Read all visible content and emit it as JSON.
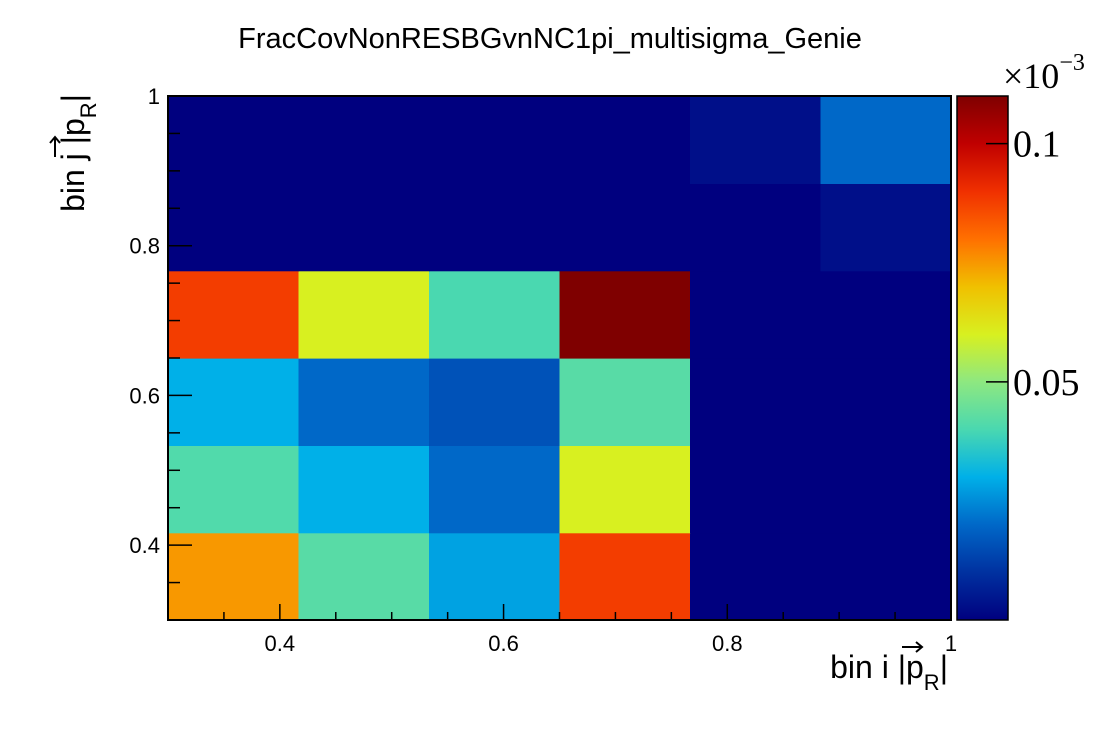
{
  "chart_data": {
    "type": "heatmap",
    "title": "FracCovNonRESBGvnNC1pi_multisigma_Genie",
    "xlabel": {
      "main": "bin i |",
      "vector": "p",
      "sub": "R",
      "close": "|"
    },
    "ylabel": {
      "main": "bin j |",
      "vector": "p",
      "sub": "R",
      "close": "|"
    },
    "x_edges": [
      0.3,
      0.4167,
      0.5333,
      0.65,
      0.7667,
      0.8833,
      1.0
    ],
    "y_edges": [
      0.3,
      0.4167,
      0.5333,
      0.65,
      0.7667,
      0.8833,
      1.0
    ],
    "xlim": [
      0.3,
      1.0
    ],
    "ylim": [
      0.3,
      1.0
    ],
    "x_ticks": [
      {
        "value": 0.4,
        "label": "0.4"
      },
      {
        "value": 0.6,
        "label": "0.6"
      },
      {
        "value": 0.8,
        "label": "0.8"
      },
      {
        "value": 1.0,
        "label": "1"
      }
    ],
    "y_ticks": [
      {
        "value": 0.4,
        "label": "0.4"
      },
      {
        "value": 0.6,
        "label": "0.6"
      },
      {
        "value": 0.8,
        "label": "0.8"
      },
      {
        "value": 1.0,
        "label": "1"
      }
    ],
    "values": [
      [
        0.075,
        0.042,
        0.028,
        0.088,
        0.0,
        0.0
      ],
      [
        0.041,
        0.03,
        0.02,
        0.06,
        0.0,
        0.0
      ],
      [
        0.03,
        0.02,
        0.016,
        0.042,
        0.0,
        0.0
      ],
      [
        0.088,
        0.06,
        0.04,
        0.11,
        0.0,
        0.0
      ],
      [
        0.0,
        0.0,
        0.0,
        0.0,
        0.0,
        0.003
      ],
      [
        0.0,
        0.0,
        0.0,
        0.0,
        0.003,
        0.02
      ]
    ],
    "zlim": [
      0.0,
      0.11
    ],
    "palette": {
      "ticks": [
        {
          "value": 0.05,
          "label": "0.05"
        },
        {
          "value": 0.1,
          "label": "0.1"
        }
      ],
      "exponent_base": "×10",
      "exponent_power": "−3",
      "colors": [
        "#00007f",
        "#0031a0",
        "#0068c8",
        "#00b0e8",
        "#4ad8b0",
        "#8ee880",
        "#d8f020",
        "#f0c000",
        "#ff7000",
        "#f03000",
        "#c00000",
        "#7f0000"
      ]
    }
  }
}
